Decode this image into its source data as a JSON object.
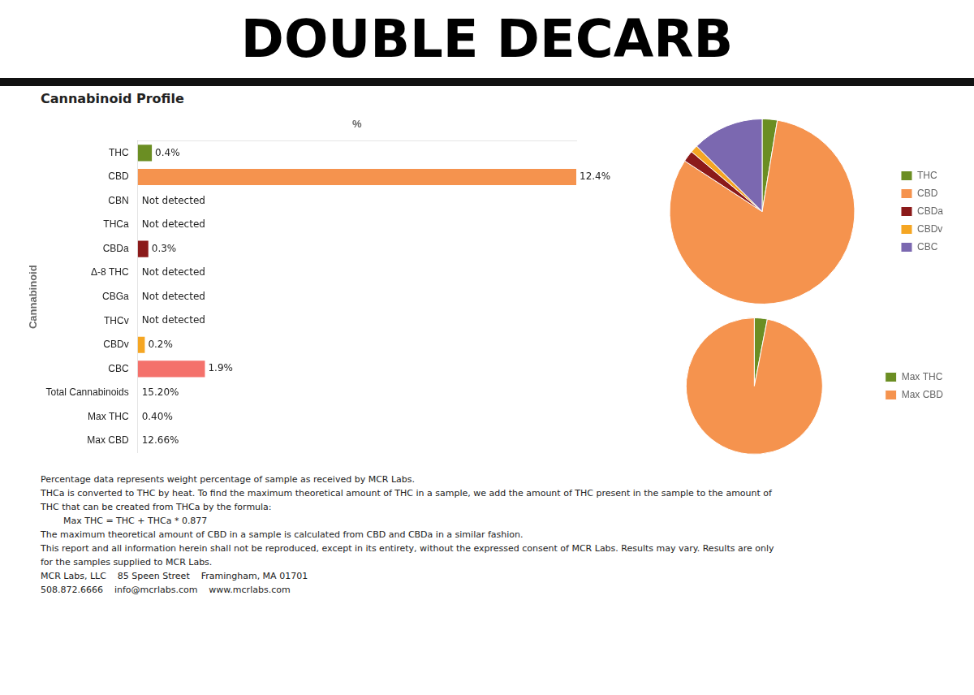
{
  "chart_data": [
    {
      "type": "bar",
      "title": "DOUBLE DECARB",
      "subtitle": "Cannabinoid Profile",
      "orientation": "horizontal",
      "y_label": "Cannabinoid",
      "x_label": "%",
      "categories": [
        "THC",
        "CBD",
        "CBN",
        "THCa",
        "CBDa",
        "Δ-8 THC",
        "CBGa",
        "THCv",
        "CBDv",
        "CBC",
        "Total Cannabinoids",
        "Max THC",
        "Max CBD"
      ],
      "values": [
        0.4,
        12.4,
        null,
        null,
        0.3,
        null,
        null,
        null,
        0.2,
        1.9,
        null,
        null,
        null
      ],
      "value_labels": [
        "0.4%",
        "12.4%",
        "Not detected",
        "Not detected",
        "0.3%",
        "Not detected",
        "Not detected",
        "Not detected",
        "0.2%",
        "1.9%",
        "15.20%",
        "0.40%",
        "12.66%"
      ],
      "colors": [
        "#6b8e23",
        "#f5934e",
        null,
        null,
        "#8b1a1a",
        null,
        null,
        null,
        "#f5a623",
        "#f4716b",
        null,
        null,
        null
      ],
      "xlim": [
        0,
        12.4
      ],
      "data_labels": true,
      "tick_labels": "y",
      "grid": false,
      "annotations": [
        "Percentage data represents weight percentage of sample as received by MCR Labs.",
        "THCa is converted to THC by heat. To find the maximum theoretical amount of THC in a sample, we add the amount of THC present in the sample to the amount of",
        "THC that can be created from THCa by the formula:",
        "        Max THC = THC + THCa * 0.877",
        "The maximum theoretical amount of CBD in a sample is calculated from CBD and CBDa in a similar fashion.",
        "This report and all information herein shall not be reproduced, except in its entirety, without the expressed consent of MCR Labs. Results may vary. Results are only",
        "for the samples supplied to MCR Labs.",
        "MCR Labs, LLC    85 Speen Street    Framingham, MA 01701",
        "508.872.6666    info@mcrlabs.com    www.mcrlabs.com"
      ]
    },
    {
      "type": "pie",
      "categories": [
        "THC",
        "CBD",
        "CBDa",
        "CBDv",
        "CBC"
      ],
      "values": [
        0.4,
        12.4,
        0.3,
        0.2,
        1.9
      ],
      "colors": [
        "#6b8e23",
        "#f5934e",
        "#8b1a1a",
        "#f5a623",
        "#7b68b0"
      ],
      "legend": "right"
    },
    {
      "type": "pie",
      "categories": [
        "Max THC",
        "Max CBD"
      ],
      "values": [
        0.4,
        12.66
      ],
      "colors": [
        "#6b8e23",
        "#f5934e"
      ],
      "legend": "right"
    }
  ]
}
